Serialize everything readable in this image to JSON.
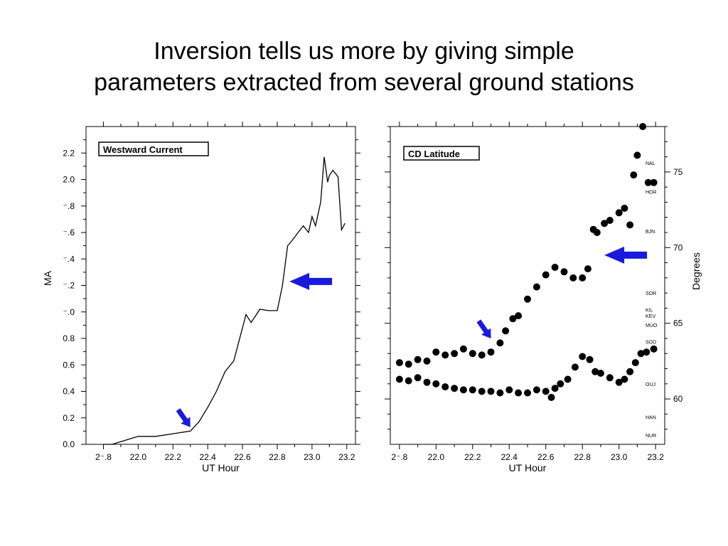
{
  "slide": {
    "title_line1": "Inversion tells us more by giving simple",
    "title_line2": "parameters extracted from several ground stations"
  },
  "colors": {
    "arrow": "#1a1adc",
    "ink": "#000000",
    "background": "#ffffff"
  },
  "icons": [
    "arrow-left-icon",
    "arrow-down-right-icon"
  ],
  "chart_data": [
    {
      "type": "line",
      "legend_box": "Westward Current",
      "xlabel": "UT Hour",
      "ylabel": "MA",
      "xlim": [
        21.7,
        23.25
      ],
      "ylim": [
        0.0,
        2.4
      ],
      "xticks": [
        "2⁻.8",
        "22.0",
        "22.2",
        "22.4",
        "22.6",
        "22.8",
        "23.0",
        "23.2"
      ],
      "yticks": [
        "0.0",
        "0.2",
        "0.4",
        "0.6",
        "0.8",
        "⁻.0",
        "⁻.2",
        "⁻.4",
        "⁻.6",
        "⁻.8",
        "2.0",
        "2.2"
      ],
      "series": [
        {
          "x": [
            21.8,
            21.85,
            21.9,
            21.95,
            22.0,
            22.1,
            22.2,
            22.25,
            22.3,
            22.35,
            22.4,
            22.45,
            22.5,
            22.55,
            22.6,
            22.62,
            22.65,
            22.7,
            22.75,
            22.8,
            22.83,
            22.86,
            22.88,
            22.92,
            22.95,
            22.98,
            23.0,
            23.02,
            23.05,
            23.07,
            23.09,
            23.1,
            23.12,
            23.15,
            23.17,
            23.19
          ],
          "y": [
            0.0,
            0.0,
            0.02,
            0.04,
            0.06,
            0.06,
            0.08,
            0.09,
            0.1,
            0.17,
            0.28,
            0.4,
            0.55,
            0.63,
            0.88,
            0.98,
            0.92,
            1.02,
            1.01,
            1.01,
            1.2,
            1.5,
            1.53,
            1.6,
            1.65,
            1.6,
            1.72,
            1.65,
            1.83,
            2.17,
            1.98,
            2.03,
            2.07,
            2.02,
            1.62,
            1.67
          ]
        }
      ],
      "annotations": [
        {
          "shape": "arrow-left",
          "x": 22.87,
          "y": 1.23
        },
        {
          "shape": "arrow-down-right",
          "x": 22.3,
          "y": 0.13
        }
      ]
    },
    {
      "type": "scatter",
      "legend_box": "CD Latitude",
      "xlabel": "UT Hour",
      "ylabel": "Degrees",
      "xlim": [
        21.75,
        23.25
      ],
      "ylim": [
        57.0,
        78.0
      ],
      "xticks": [
        "2⁻.8",
        "22.0",
        "22.2",
        "22.4",
        "22.6",
        "22.8",
        "23.0",
        "23.2"
      ],
      "yticks": [
        "60",
        "65",
        "70",
        "75"
      ],
      "stations": [
        "NAL",
        "HOR",
        "BJN",
        "SOR",
        "KIL",
        "KEV",
        "MUO",
        "SOD",
        "OUJ",
        "HAN",
        "NUR"
      ],
      "series": [
        {
          "x": [
            21.8,
            21.85,
            21.9,
            21.95,
            22.0,
            22.05,
            22.1,
            22.15,
            22.2,
            22.25,
            22.3,
            22.35,
            22.38,
            22.42,
            22.45,
            22.5,
            22.55,
            22.6,
            22.65,
            22.7,
            22.75,
            22.8,
            22.83,
            22.86,
            22.88,
            22.92,
            22.95,
            23.0,
            23.03,
            23.06,
            23.08,
            23.1,
            23.13,
            23.16,
            23.19
          ],
          "y": [
            62.4,
            62.3,
            62.6,
            62.5,
            63.1,
            62.9,
            63.0,
            63.3,
            63.0,
            62.9,
            63.1,
            63.7,
            64.5,
            65.3,
            65.5,
            66.6,
            67.4,
            68.2,
            68.7,
            68.4,
            68.0,
            68.0,
            68.6,
            71.2,
            71.0,
            71.6,
            71.8,
            72.3,
            72.6,
            71.5,
            74.8,
            76.1,
            78.0,
            74.3,
            74.3
          ]
        },
        {
          "x": [
            21.8,
            21.85,
            21.9,
            21.95,
            22.0,
            22.05,
            22.1,
            22.15,
            22.2,
            22.25,
            22.3,
            22.35,
            22.4,
            22.45,
            22.5,
            22.55,
            22.6,
            22.63,
            22.65,
            22.68,
            22.72,
            22.76,
            22.8,
            22.84,
            22.87,
            22.9,
            22.95,
            23.0,
            23.03,
            23.06,
            23.09,
            23.12,
            23.15,
            23.19
          ],
          "y": [
            61.3,
            61.2,
            61.4,
            61.1,
            61.0,
            60.8,
            60.7,
            60.6,
            60.6,
            60.5,
            60.5,
            60.4,
            60.6,
            60.4,
            60.4,
            60.6,
            60.5,
            60.1,
            60.7,
            61.0,
            61.3,
            62.1,
            62.8,
            62.6,
            61.8,
            61.7,
            61.4,
            61.1,
            61.3,
            61.8,
            62.4,
            63.0,
            63.1,
            63.3
          ]
        }
      ],
      "annotations": [
        {
          "shape": "arrow-left",
          "x": 22.92,
          "y": 69.5
        },
        {
          "shape": "arrow-down-right",
          "x": 22.3,
          "y": 64.0
        }
      ]
    }
  ]
}
